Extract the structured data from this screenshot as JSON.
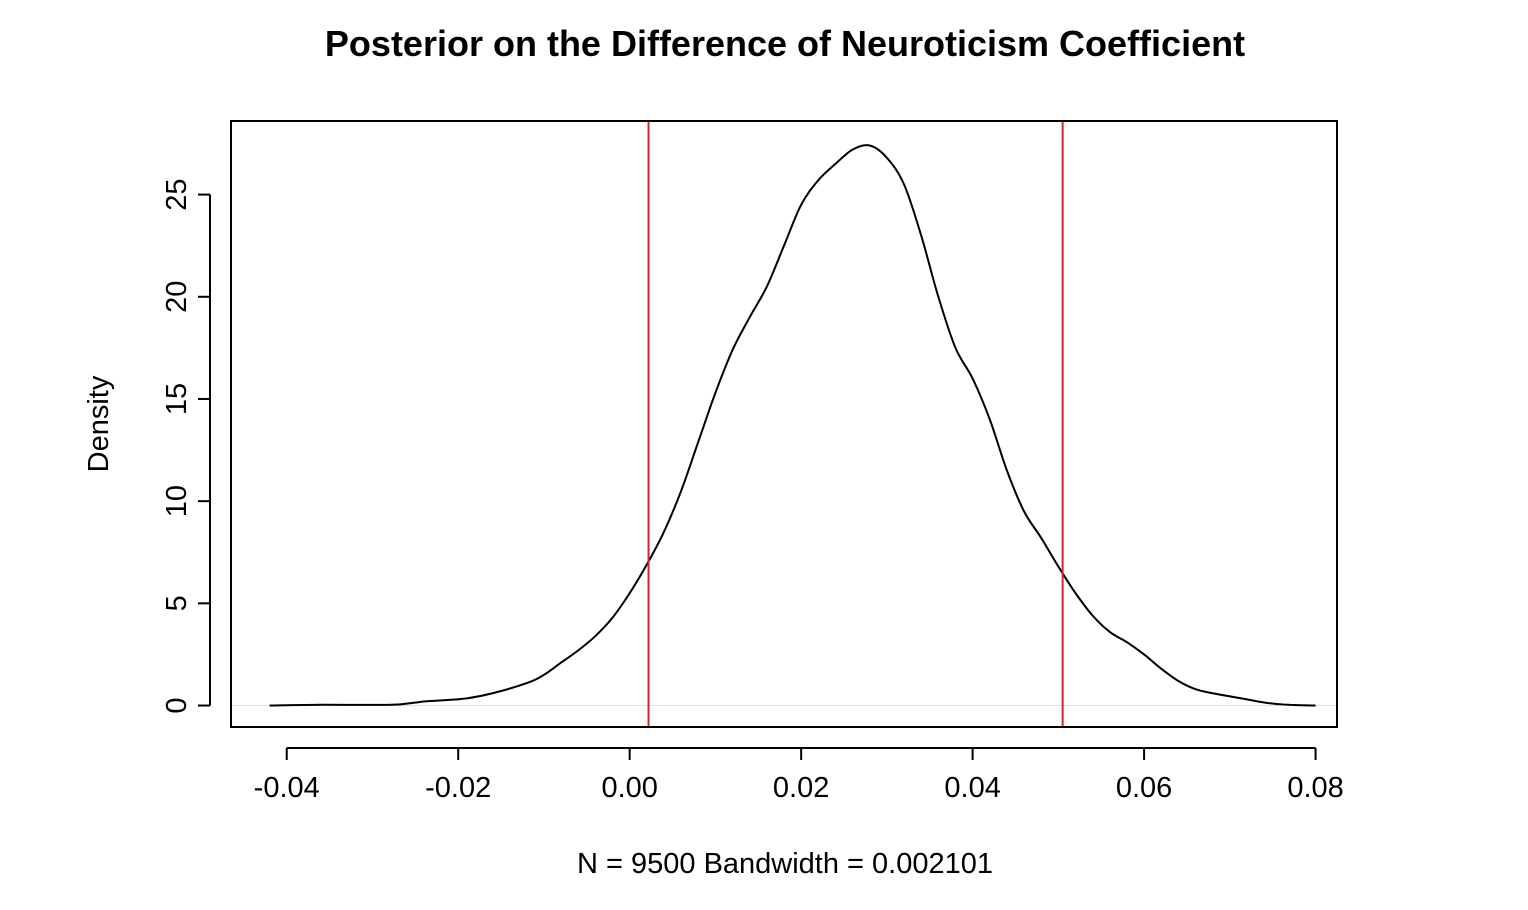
{
  "chart_data": {
    "type": "line",
    "title": "Posterior on the Difference of Neuroticism Coefficient",
    "xlabel": "N = 9500   Bandwidth = 0.002101",
    "ylabel": "Density",
    "xlim": [
      -0.0465,
      0.0825
    ],
    "ylim": [
      -1.05,
      28.6
    ],
    "x_ticks": [
      {
        "value": -0.04,
        "label": "-0.04"
      },
      {
        "value": -0.02,
        "label": "-0.02"
      },
      {
        "value": 0.0,
        "label": "0.00"
      },
      {
        "value": 0.02,
        "label": "0.02"
      },
      {
        "value": 0.04,
        "label": "0.04"
      },
      {
        "value": 0.06,
        "label": "0.06"
      },
      {
        "value": 0.08,
        "label": "0.08"
      }
    ],
    "y_ticks": [
      {
        "value": 0,
        "label": "0"
      },
      {
        "value": 5,
        "label": "5"
      },
      {
        "value": 10,
        "label": "10"
      },
      {
        "value": 15,
        "label": "15"
      },
      {
        "value": 20,
        "label": "20"
      },
      {
        "value": 25,
        "label": "25"
      }
    ],
    "grid": false,
    "zero_line": true,
    "series": [
      {
        "line_color": "#000000",
        "x": [
          -0.042,
          -0.036,
          -0.03,
          -0.027,
          -0.024,
          -0.022,
          -0.019,
          -0.016,
          -0.012,
          -0.01,
          -0.008,
          -0.006,
          -0.004,
          -0.002,
          0.0,
          0.002,
          0.004,
          0.006,
          0.008,
          0.01,
          0.012,
          0.014,
          0.016,
          0.018,
          0.02,
          0.022,
          0.024,
          0.026,
          0.028,
          0.03,
          0.032,
          0.034,
          0.036,
          0.038,
          0.04,
          0.042,
          0.044,
          0.046,
          0.048,
          0.05,
          0.052,
          0.054,
          0.056,
          0.058,
          0.06,
          0.062,
          0.064,
          0.066,
          0.068,
          0.07,
          0.072,
          0.074,
          0.076,
          0.078,
          0.08
        ],
        "y": [
          0.0,
          0.04,
          0.03,
          0.05,
          0.2,
          0.25,
          0.35,
          0.6,
          1.1,
          1.5,
          2.1,
          2.7,
          3.4,
          4.3,
          5.5,
          6.9,
          8.5,
          10.5,
          12.9,
          15.3,
          17.4,
          19.0,
          20.5,
          22.5,
          24.5,
          25.7,
          26.5,
          27.2,
          27.4,
          26.8,
          25.5,
          23.0,
          20.0,
          17.5,
          16.0,
          14.0,
          11.5,
          9.5,
          8.2,
          6.8,
          5.5,
          4.4,
          3.6,
          3.1,
          2.5,
          1.8,
          1.2,
          0.8,
          0.6,
          0.45,
          0.3,
          0.15,
          0.06,
          0.02,
          0.0
        ]
      }
    ],
    "vertical_lines": [
      {
        "x": 0.0022,
        "color": "#d62728"
      },
      {
        "x": 0.0505,
        "color": "#d62728"
      }
    ]
  }
}
